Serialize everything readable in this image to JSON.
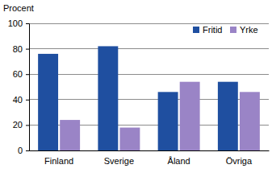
{
  "chart_data": {
    "type": "bar",
    "ylabel": "Procent",
    "categories": [
      "Finland",
      "Sverige",
      "Åland",
      "Övriga"
    ],
    "series": [
      {
        "name": "Fritid",
        "color": "#1f4fa0",
        "values": [
          76,
          82,
          46,
          54
        ]
      },
      {
        "name": "Yrke",
        "color": "#9a84c6",
        "values": [
          24,
          18,
          54,
          46
        ]
      }
    ],
    "ylim": [
      0,
      100
    ],
    "yticks": [
      0,
      20,
      40,
      60,
      80,
      100
    ],
    "grid": true,
    "legend": "upper right"
  }
}
